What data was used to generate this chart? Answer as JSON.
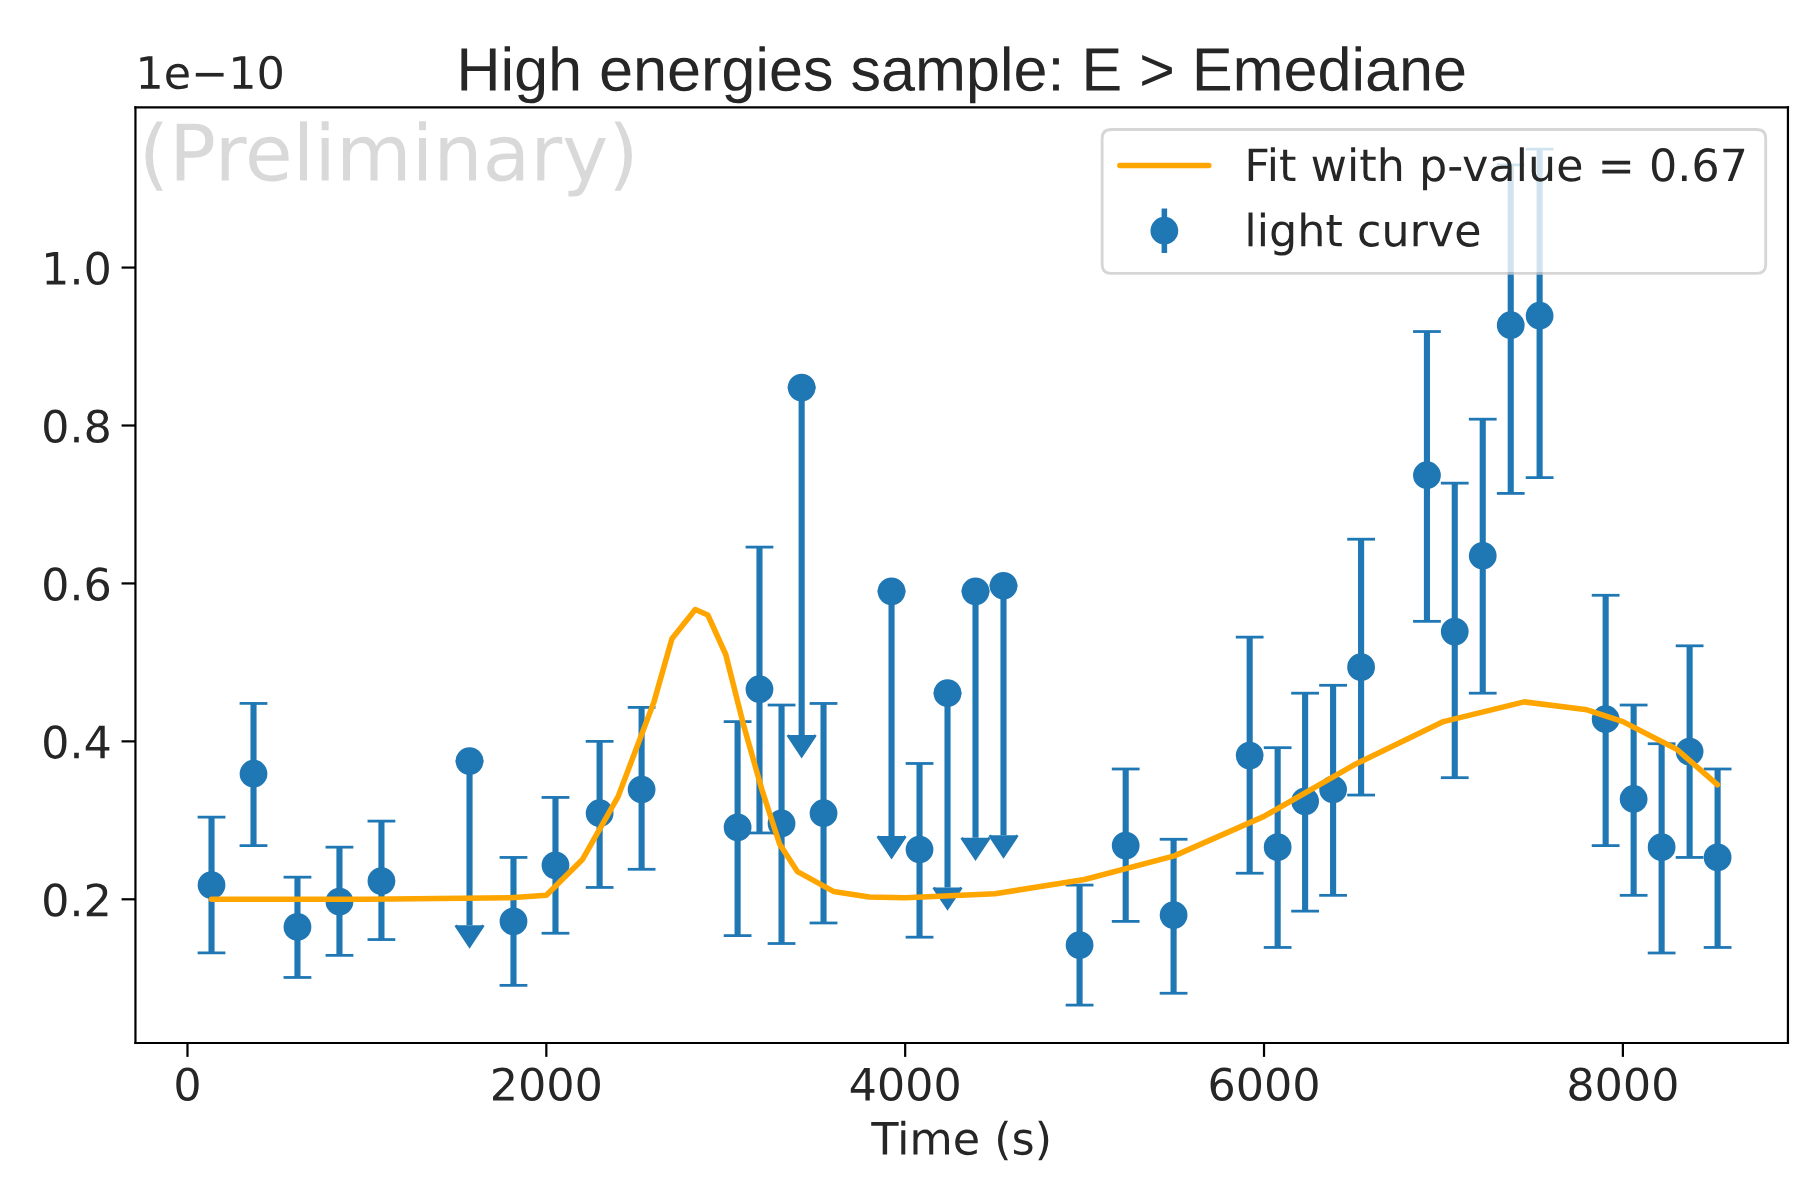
{
  "chart_data": {
    "type": "scatter",
    "title": "High energies sample: E > Emediane",
    "xlabel": "Time (s)",
    "annotations": [
      "1e−10",
      "(Preliminary)"
    ],
    "series": [
      {
        "name": "Fit with p-value = 0.67",
        "type": "line",
        "color": "#ffa500",
        "marker": "none",
        "line_style": "solid",
        "x": [
          134,
          1000,
          1800,
          2000,
          2200,
          2400,
          2600,
          2700,
          2830,
          2900,
          3000,
          3100,
          3200,
          3300,
          3400,
          3600,
          3800,
          4000,
          4500,
          5000,
          5500,
          6000,
          6500,
          7000,
          7450,
          7800,
          8000,
          8300,
          8528
        ],
        "values": [
          0.2,
          0.2,
          0.202,
          0.205,
          0.25,
          0.33,
          0.45,
          0.53,
          0.567,
          0.56,
          0.51,
          0.42,
          0.34,
          0.27,
          0.235,
          0.21,
          0.203,
          0.202,
          0.207,
          0.225,
          0.255,
          0.305,
          0.37,
          0.425,
          0.45,
          0.44,
          0.425,
          0.39,
          0.345
        ]
      },
      {
        "name": "light curve",
        "color": "#1f77b4",
        "marker": "circle",
        "x": [
          134,
          368,
          613,
          847,
          1081,
          1572,
          1817,
          2051,
          2297,
          2531,
          3066,
          3188,
          3311,
          3423,
          3545,
          3924,
          4080,
          4236,
          4392,
          4548,
          4972,
          5229,
          5496,
          5920,
          6076,
          6229,
          6385,
          6541,
          6908,
          7063,
          7219,
          7375,
          7536,
          7904,
          8060,
          8216,
          8372,
          8528
        ],
        "values": [
          0.218,
          0.359,
          0.165,
          0.197,
          0.223,
          0.375,
          0.172,
          0.243,
          0.309,
          0.339,
          0.291,
          0.466,
          0.296,
          0.848,
          0.309,
          0.59,
          0.263,
          0.461,
          0.59,
          0.597,
          0.142,
          0.268,
          0.18,
          0.382,
          0.266,
          0.324,
          0.339,
          0.494,
          0.737,
          0.539,
          0.635,
          0.927,
          0.939,
          0.428,
          0.327,
          0.266,
          0.387,
          0.253
        ],
        "errors": [
          [
            0.132,
            0.304
          ],
          [
            0.268,
            0.448
          ],
          [
            0.101,
            0.228
          ],
          [
            0.129,
            0.266
          ],
          [
            0.149,
            0.299
          ],
          [
            0.167,
            0.375
          ],
          [
            0.091,
            0.253
          ],
          [
            0.157,
            0.329
          ],
          [
            0.215,
            0.4
          ],
          [
            0.238,
            0.443
          ],
          [
            0.154,
            0.425
          ],
          [
            0.284,
            0.646
          ],
          [
            0.144,
            0.446
          ],
          [
            0.408,
            0.848
          ],
          [
            0.17,
            0.448
          ],
          [
            0.28,
            0.59
          ],
          [
            0.152,
            0.372
          ],
          [
            0.215,
            0.461
          ],
          [
            0.278,
            0.59
          ],
          [
            0.281,
            0.597
          ],
          [
            0.066,
            0.218
          ],
          [
            0.172,
            0.365
          ],
          [
            0.081,
            0.276
          ],
          [
            0.233,
            0.532
          ],
          [
            0.139,
            0.392
          ],
          [
            0.185,
            0.461
          ],
          [
            0.205,
            0.471
          ],
          [
            0.332,
            0.656
          ],
          [
            0.552,
            0.919
          ],
          [
            0.354,
            0.727
          ],
          [
            0.461,
            0.808
          ],
          [
            0.714,
            1.13
          ],
          [
            0.734,
            1.15
          ],
          [
            0.268,
            0.585
          ],
          [
            0.205,
            0.446
          ],
          [
            0.132,
            0.397
          ],
          [
            0.253,
            0.521
          ],
          [
            0.139,
            0.365
          ]
        ]
      }
    ],
    "xlim": [
      -290,
      8920
    ],
    "ylim": [
      0.018,
      1.203
    ],
    "xticks": [
      0,
      2000,
      4000,
      6000,
      8000
    ],
    "yticks": [
      0.2,
      0.4,
      0.6,
      0.8,
      {
        "value": 1,
        "label": "1.0"
      }
    ],
    "grid": false,
    "legend": "top right"
  }
}
